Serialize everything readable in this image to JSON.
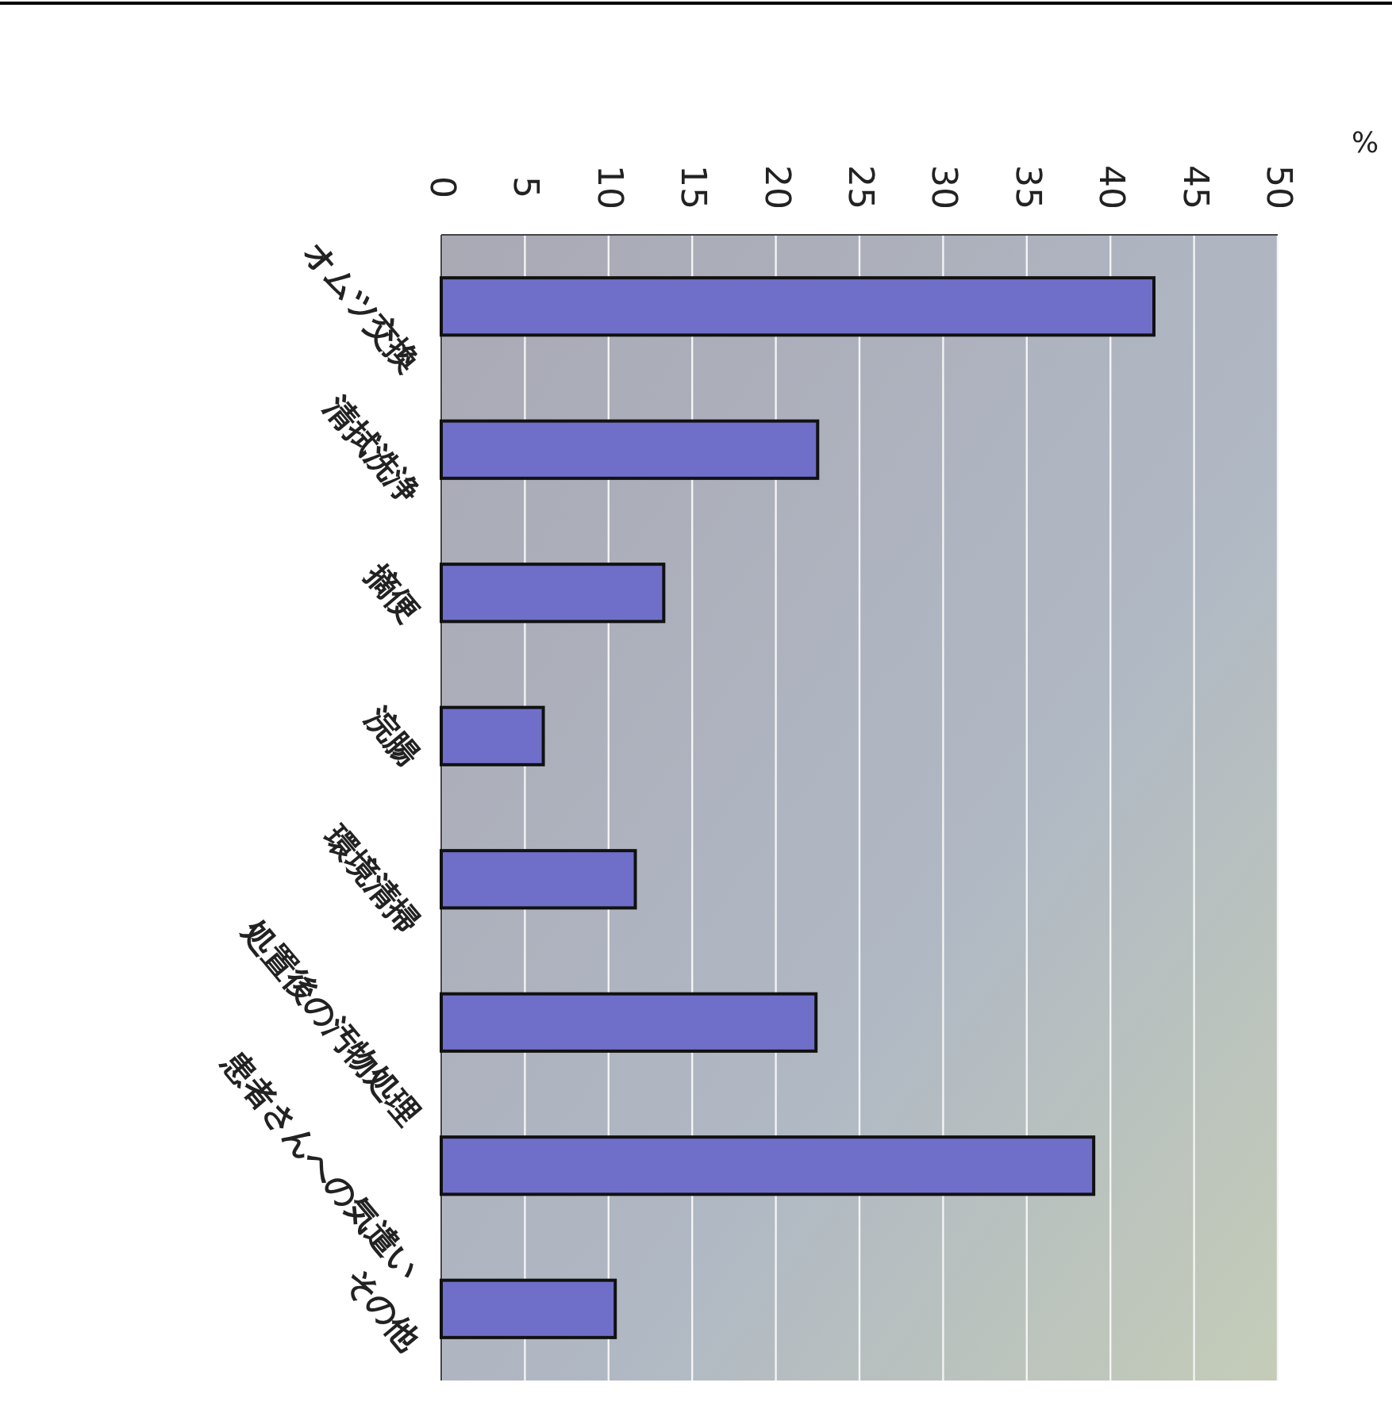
{
  "chart_data": {
    "type": "bar",
    "orientation": "horizontal",
    "xlabel": "%",
    "categories": [
      "オムツ交換",
      "清拭洗浄",
      "摘便",
      "浣腸",
      "環境清掃",
      "処置後の汚物処理",
      "患者さんへの気遣い",
      "その他"
    ],
    "values": [
      42.6,
      22.5,
      13.3,
      6.1,
      11.6,
      22.4,
      39,
      10.4
    ],
    "color": "#6f6fc9",
    "xlim": [
      0,
      50
    ],
    "xticks": [
      0,
      5,
      10,
      15,
      20,
      25,
      30,
      35,
      40,
      45,
      50
    ],
    "grid": "x"
  }
}
